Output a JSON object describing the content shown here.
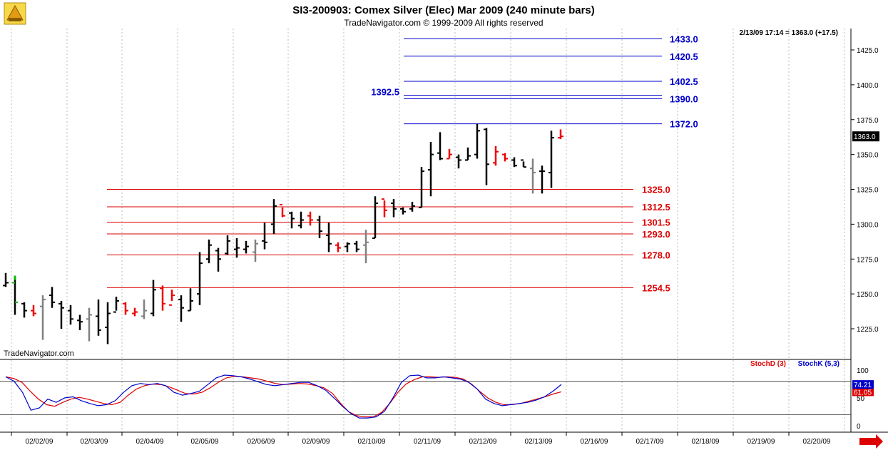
{
  "header": {
    "title": "SI3-200903:  Comex Silver (Elec) Mar 2009  (240 minute bars)",
    "subtitle": "TradeNavigator.com © 1999-2009 All rights reserved",
    "status": "2/13/09 17:14 = 1363.0 (+17.5)",
    "watermark": "TradeNavigator.com",
    "last_price_label": "1363.0"
  },
  "colors": {
    "up_bar": "#000000",
    "down_bar": "#ee0000",
    "neutral_bar": "#808080",
    "first_green": "#00bb00",
    "blue_level": "#0000cc",
    "red_level": "#dd0000",
    "stoch_d": "#dd0000",
    "stoch_k": "#0000cc",
    "nav_arrow": "#dd0000"
  },
  "chart_data": [
    {
      "type": "ohlc",
      "title": "SI3-200903:  Comex Silver (Elec) Mar 2009  (240 minute bars)",
      "y_ticks": [
        "1425.0",
        "1400.0",
        "1375.0",
        "1350.0",
        "1325.0",
        "1300.0",
        "1275.0",
        "1250.0",
        "1225.0"
      ],
      "y_tick_values": [
        1425,
        1400,
        1375,
        1350,
        1325,
        1300,
        1275,
        1250,
        1225
      ],
      "ylim": [
        1212,
        1444
      ],
      "x_ticks": [
        "02/02/09",
        "02/03/09",
        "02/04/09",
        "02/05/09",
        "02/06/09",
        "02/09/09",
        "02/10/09",
        "02/11/09",
        "02/12/09",
        "02/13/09",
        "02/16/09",
        "02/17/09",
        "02/18/09",
        "02/19/09",
        "02/20/09"
      ],
      "bar_groups": [
        {
          "date": "02/02/09",
          "bars": [
            [
              1256,
              1265,
              1255,
              1258,
              "b"
            ],
            [
              1258,
              1263,
              1235,
              1244,
              "g"
            ],
            [
              1243,
              1244,
              1233,
              1238,
              "b"
            ],
            [
              1238,
              1242,
              1234,
              1236,
              "r"
            ],
            [
              1241,
              1249,
              1217,
              1246,
              "n"
            ],
            [
              1249,
              1255,
              1240,
              1244,
              "b"
            ]
          ]
        },
        {
          "date": "02/03/09",
          "bars": [
            [
              1243,
              1245,
              1225,
              1240,
              "b"
            ],
            [
              1238,
              1242,
              1228,
              1232,
              "b"
            ],
            [
              1231,
              1235,
              1224,
              1230,
              "b"
            ],
            [
              1232,
              1240,
              1216,
              1235,
              "n"
            ],
            [
              1234,
              1246,
              1220,
              1224,
              "b"
            ],
            [
              1226,
              1244,
              1214,
              1236,
              "b"
            ]
          ]
        },
        {
          "date": "02/04/09",
          "bars": [
            [
              1237,
              1248,
              1238,
              1245,
              "b"
            ],
            [
              1243,
              1244,
              1235,
              1238,
              "r"
            ],
            [
              1236,
              1240,
              1234,
              1237,
              "r"
            ],
            [
              1234,
              1246,
              1232,
              1238,
              "n"
            ],
            [
              1236,
              1260,
              1234,
              1253,
              "b"
            ],
            [
              1254,
              1256,
              1238,
              1243,
              "r"
            ]
          ]
        },
        {
          "date": "02/05/09",
          "bars": [
            [
              1242,
              1253,
              1245,
              1249,
              "r"
            ],
            [
              1246,
              1249,
              1230,
              1240,
              "b"
            ],
            [
              1238,
              1254,
              1238,
              1245,
              "b"
            ],
            [
              1250,
              1280,
              1242,
              1272,
              "b"
            ],
            [
              1275,
              1289,
              1272,
              1285,
              "b"
            ],
            [
              1281,
              1283,
              1266,
              1275,
              "b"
            ]
          ]
        },
        {
          "date": "02/06/09",
          "bars": [
            [
              1279,
              1292,
              1278,
              1288,
              "b"
            ],
            [
              1282,
              1290,
              1276,
              1283,
              "b"
            ],
            [
              1282,
              1288,
              1279,
              1284,
              "b"
            ],
            [
              1280,
              1289,
              1273,
              1286,
              "n"
            ],
            [
              1288,
              1301,
              1282,
              1287,
              "b"
            ],
            [
              1300,
              1318,
              1293,
              1313,
              "b"
            ]
          ]
        },
        {
          "date": "02/09/09",
          "bars": [
            [
              1314,
              1312,
              1305,
              1306,
              "r"
            ],
            [
              1308,
              1309,
              1297,
              1304,
              "b"
            ],
            [
              1299,
              1309,
              1297,
              1303,
              "b"
            ],
            [
              1306,
              1309,
              1299,
              1303,
              "r"
            ],
            [
              1303,
              1306,
              1290,
              1295,
              "b"
            ],
            [
              1292,
              1301,
              1280,
              1286,
              "b"
            ]
          ]
        },
        {
          "date": "02/10/09",
          "bars": [
            [
              1285,
              1287,
              1280,
              1283,
              "r"
            ],
            [
              1284,
              1287,
              1280,
              1286,
              "b"
            ],
            [
              1286,
              1288,
              1280,
              1282,
              "b"
            ],
            [
              1285,
              1296,
              1272,
              1287,
              "n"
            ],
            [
              1290,
              1320,
              1290,
              1315,
              "b"
            ],
            [
              1318,
              1317,
              1305,
              1310,
              "r"
            ]
          ]
        },
        {
          "date": "02/11/09",
          "bars": [
            [
              1315,
              1318,
              1305,
              1311,
              "b"
            ],
            [
              1311,
              1312,
              1307,
              1309,
              "b"
            ],
            [
              1311,
              1316,
              1309,
              1313,
              "b"
            ],
            [
              1312,
              1341,
              1312,
              1338,
              "b"
            ],
            [
              1339,
              1359,
              1320,
              1350,
              "b"
            ],
            [
              1351,
              1366,
              1346,
              1347,
              "b"
            ]
          ]
        },
        {
          "date": "02/12/09",
          "bars": [
            [
              1347,
              1354,
              1347,
              1350,
              "r"
            ],
            [
              1348,
              1350,
              1340,
              1346,
              "b"
            ],
            [
              1346,
              1355,
              1346,
              1349,
              "b"
            ],
            [
              1350,
              1372,
              1347,
              1367,
              "b"
            ],
            [
              1368,
              1369,
              1328,
              1343,
              "b"
            ],
            [
              1344,
              1356,
              1342,
              1352,
              "r"
            ]
          ]
        },
        {
          "date": "02/13/09",
          "bars": [
            [
              1350,
              1351,
              1345,
              1347,
              "r"
            ],
            [
              1346,
              1348,
              1341,
              1342,
              "b"
            ],
            [
              1346,
              1345,
              1341,
              1341,
              "b"
            ],
            [
              1340,
              1347,
              1322,
              1337,
              "n"
            ],
            [
              1338,
              1342,
              1322,
              1338,
              "b"
            ],
            [
              1337,
              1367,
              1326,
              1362,
              "b"
            ],
            [
              1362,
              1368,
              1361,
              1363,
              "r"
            ]
          ]
        }
      ],
      "levels": [
        {
          "value": 1433.0,
          "label": "1433.0",
          "color": "blue"
        },
        {
          "value": 1420.5,
          "label": "1420.5",
          "color": "blue"
        },
        {
          "value": 1402.5,
          "label": "1402.5",
          "color": "blue"
        },
        {
          "value": 1392.5,
          "label": "1392.5",
          "color": "blue",
          "label_side": "left"
        },
        {
          "value": 1390.0,
          "label": "1390.0",
          "color": "blue"
        },
        {
          "value": 1372.0,
          "label": "1372.0",
          "color": "blue"
        },
        {
          "value": 1325.0,
          "label": "1325.0",
          "color": "red"
        },
        {
          "value": 1312.5,
          "label": "1312.5",
          "color": "red"
        },
        {
          "value": 1301.5,
          "label": "1301.5",
          "color": "red"
        },
        {
          "value": 1293.0,
          "label": "1293.0",
          "color": "red"
        },
        {
          "value": 1278.0,
          "label": "1278.0",
          "color": "red"
        },
        {
          "value": 1254.5,
          "label": "1254.5",
          "color": "red"
        }
      ],
      "last_price": 1363.0
    },
    {
      "type": "line",
      "y_ticks": [
        "100",
        "50",
        "0"
      ],
      "y_tick_values": [
        100,
        50,
        0
      ],
      "ylim": [
        -12,
        112
      ],
      "reference_lines": [
        80,
        20
      ],
      "series": [
        {
          "name": "StochD (3)",
          "color": "#dd0000",
          "last_label": "61.05",
          "values": [
            88,
            85,
            78,
            62,
            48,
            38,
            35,
            42,
            48,
            51,
            48,
            44,
            40,
            38,
            42,
            55,
            66,
            72,
            75,
            74,
            70,
            64,
            58,
            57,
            60,
            68,
            78,
            86,
            89,
            88,
            86,
            84,
            80,
            76,
            74,
            75,
            76,
            75,
            72,
            68,
            58,
            40,
            25,
            18,
            16,
            16,
            24,
            40,
            60,
            75,
            83,
            88,
            88,
            87,
            88,
            87,
            84,
            75,
            62,
            50,
            42,
            38,
            38,
            40,
            44,
            48,
            52,
            57,
            61.05
          ]
        },
        {
          "name": "StochK (5,3)",
          "color": "#0000cc",
          "last_label": "74.21",
          "values": [
            88,
            80,
            60,
            28,
            32,
            48,
            42,
            50,
            52,
            45,
            40,
            36,
            38,
            45,
            60,
            72,
            76,
            74,
            76,
            72,
            60,
            55,
            58,
            62,
            74,
            86,
            91,
            90,
            88,
            84,
            79,
            74,
            72,
            74,
            76,
            78,
            78,
            72,
            64,
            50,
            35,
            22,
            14,
            14,
            16,
            26,
            50,
            78,
            90,
            91,
            86,
            86,
            88,
            86,
            84,
            78,
            66,
            48,
            40,
            36,
            38,
            40,
            42,
            46,
            52,
            62,
            74.21
          ]
        }
      ]
    }
  ]
}
